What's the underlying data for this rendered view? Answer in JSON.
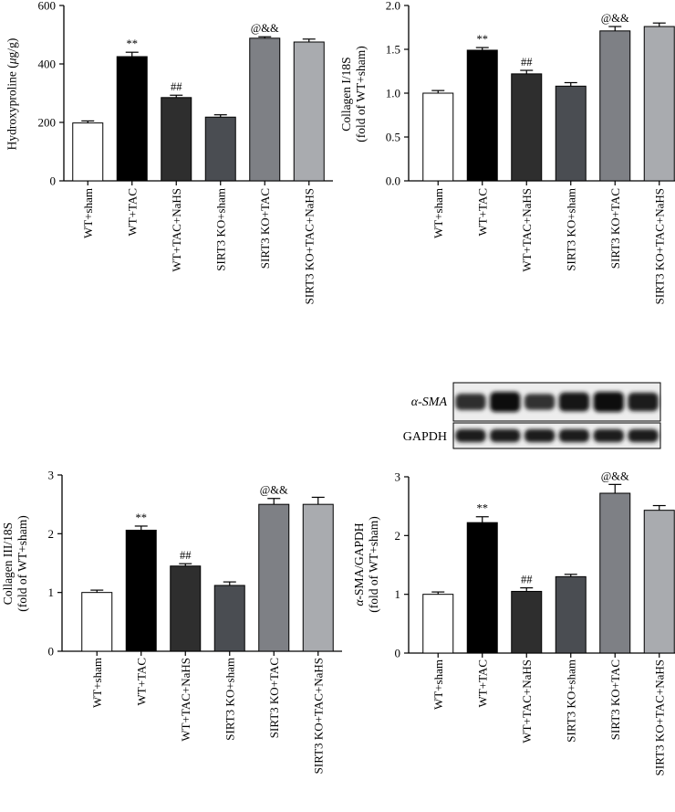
{
  "chart_data": [
    {
      "id": "hydroxyproline",
      "type": "bar",
      "title": "",
      "xlabel": "",
      "ylabel": "Hydroxyproline (μg/g)",
      "ylim": [
        0,
        600
      ],
      "yticks": [
        "0",
        "200",
        "400",
        "600"
      ],
      "categories": [
        "WT+sham",
        "WT+TAC",
        "WT+TAC+NaHS",
        "SIRT3 KO+sham",
        "SIRT3 KO+TAC",
        "SIRT3 KO+TAC+NaHS"
      ],
      "values": [
        198,
        425,
        285,
        218,
        488,
        475
      ],
      "errors": [
        7,
        15,
        8,
        8,
        5,
        10
      ],
      "annotations": [
        "",
        "**",
        "##",
        "",
        "@&&",
        ""
      ],
      "colors": [
        "#ffffff",
        "#000000",
        "#2e2e2e",
        "#4a4d52",
        "#7e8085",
        "#a9abaf"
      ]
    },
    {
      "id": "collagen1",
      "type": "bar",
      "title": "",
      "xlabel": "",
      "ylabel": "Collagen I/18S (fold of WT+sham)",
      "ylabel_lines": [
        "Collagen I/18S",
        "(fold of WT+sham)"
      ],
      "ylim": [
        0,
        2.0
      ],
      "yticks": [
        "0.0",
        "0.5",
        "1.0",
        "1.5",
        "2.0"
      ],
      "categories": [
        "WT+sham",
        "WT+TAC",
        "WT+TAC+NaHS",
        "SIRT3 KO+sham",
        "SIRT3 KO+TAC",
        "SIRT3 KO+TAC+NaHS"
      ],
      "values": [
        1.0,
        1.49,
        1.22,
        1.08,
        1.71,
        1.76
      ],
      "errors": [
        0.03,
        0.03,
        0.04,
        0.04,
        0.05,
        0.04
      ],
      "annotations": [
        "",
        "**",
        "##",
        "",
        "@&&",
        ""
      ],
      "colors": [
        "#ffffff",
        "#000000",
        "#2e2e2e",
        "#4a4d52",
        "#7e8085",
        "#a9abaf"
      ]
    },
    {
      "id": "collagen3",
      "type": "bar",
      "title": "",
      "xlabel": "",
      "ylabel": "Collagen III/18S (fold of WT+sham)",
      "ylabel_lines": [
        "Collagen III/18S",
        "(fold of WT+sham)"
      ],
      "ylim": [
        0,
        3
      ],
      "yticks": [
        "0",
        "1",
        "2",
        "3"
      ],
      "categories": [
        "WT+sham",
        "WT+TAC",
        "WT+TAC+NaHS",
        "SIRT3 KO+sham",
        "SIRT3 KO+TAC",
        "SIRT3 KO+TAC+NaHS"
      ],
      "values": [
        1.0,
        2.06,
        1.45,
        1.12,
        2.5,
        2.5
      ],
      "errors": [
        0.04,
        0.07,
        0.04,
        0.06,
        0.1,
        0.12
      ],
      "annotations": [
        "",
        "**",
        "##",
        "",
        "@&&",
        ""
      ],
      "colors": [
        "#ffffff",
        "#000000",
        "#2e2e2e",
        "#4a4d52",
        "#7e8085",
        "#a9abaf"
      ]
    },
    {
      "id": "asma",
      "type": "bar",
      "title": "",
      "xlabel": "",
      "ylabel": "α-SMA/GAPDH (fold of WT+sham)",
      "ylabel_lines": [
        "α-SMA/GAPDH",
        "(fold of WT+sham)"
      ],
      "ylim": [
        0,
        3
      ],
      "yticks": [
        "0",
        "1",
        "2",
        "3"
      ],
      "categories": [
        "WT+sham",
        "WT+TAC",
        "WT+TAC+NaHS",
        "SIRT3 KO+sham",
        "SIRT3 KO+TAC",
        "SIRT3 KO+TAC+NaHS"
      ],
      "values": [
        1.0,
        2.22,
        1.05,
        1.3,
        2.72,
        2.43
      ],
      "errors": [
        0.04,
        0.1,
        0.06,
        0.04,
        0.15,
        0.08
      ],
      "annotations": [
        "",
        "**",
        "##",
        "",
        "@&&",
        ""
      ],
      "colors": [
        "#ffffff",
        "#000000",
        "#2e2e2e",
        "#4a4d52",
        "#7e8085",
        "#a9abaf"
      ]
    }
  ],
  "blot": {
    "rows": [
      {
        "label": "α-SMA",
        "intensity": [
          0.55,
          1.0,
          0.5,
          0.85,
          1.0,
          0.8
        ]
      },
      {
        "label": "GAPDH",
        "intensity": [
          0.8,
          0.8,
          0.8,
          0.8,
          0.8,
          0.8
        ]
      }
    ]
  }
}
